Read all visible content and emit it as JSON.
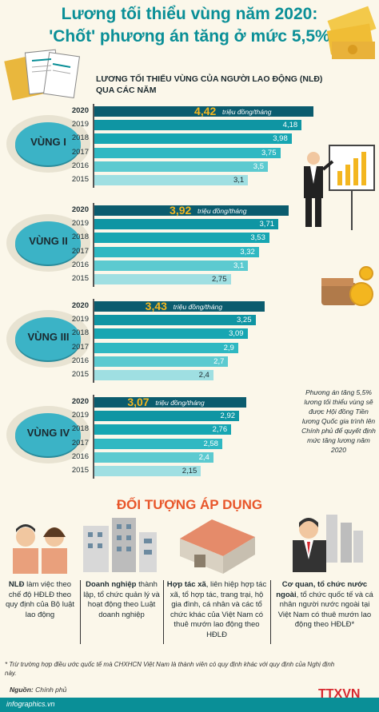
{
  "header": {
    "title_line1": "Lương tối thiểu vùng năm 2020:",
    "title_line2": "'Chốt' phương án tăng ở mức 5,5%"
  },
  "chart_data": {
    "type": "bar",
    "title": "LƯƠNG TỐI THIỂU VÙNG CỦA NGƯỜI LAO ĐỘNG (NLĐ) QUA CÁC NĂM",
    "unit": "triệu đồng/tháng",
    "categories": [
      "2020",
      "2019",
      "2018",
      "2017",
      "2016",
      "2015"
    ],
    "series": [
      {
        "name": "VÙNG I",
        "labels": [
          "4,42",
          "4,18",
          "3,98",
          "3,75",
          "3,5",
          "3,1"
        ],
        "values": [
          4.42,
          4.18,
          3.98,
          3.75,
          3.5,
          3.1
        ]
      },
      {
        "name": "VÙNG II",
        "labels": [
          "3,92",
          "3,71",
          "3,53",
          "3,32",
          "3,1",
          "2,75"
        ],
        "values": [
          3.92,
          3.71,
          3.53,
          3.32,
          3.1,
          2.75
        ]
      },
      {
        "name": "VÙNG III",
        "labels": [
          "3,43",
          "3,25",
          "3,09",
          "2,9",
          "2,7",
          "2,4"
        ],
        "values": [
          3.43,
          3.25,
          3.09,
          2.9,
          2.7,
          2.4
        ]
      },
      {
        "name": "VÙNG IV",
        "labels": [
          "3,07",
          "2,92",
          "2,76",
          "2,58",
          "2,4",
          "2,15"
        ],
        "values": [
          3.07,
          2.92,
          2.76,
          2.58,
          2.4,
          2.15
        ]
      }
    ],
    "colors": {
      "highlight": "#0b5c6e",
      "bars": [
        "#0f95a3",
        "#17a6b2",
        "#2fb8c2",
        "#5ccad0",
        "#9fdfe2"
      ],
      "value_highlight": "#f3b61f"
    }
  },
  "side_note": "Phương án tăng 5,5% lương tối thiểu vùng sẽ được Hội đồng Tiền lương Quốc gia trình lên Chính phủ để quyết định mức tăng lương năm 2020",
  "section": {
    "title": "ĐỐI TƯỢNG ÁP DỤNG",
    "items": [
      {
        "bold": "NLĐ",
        "text": " làm việc theo chế độ HĐLĐ theo quy định của Bộ luật lao động",
        "icon": "workers-icon"
      },
      {
        "bold": "Doanh nghiệp",
        "text": " thành lập, tổ chức quản lý và hoạt động theo Luật doanh nghiệp",
        "icon": "office-buildings-icon"
      },
      {
        "bold": "Hợp tác xã",
        "text": ", liên hiệp hợp tác xã, tổ hợp tác, trang trại, hộ gia đình, cá nhân và các tổ chức khác của Việt Nam có thuê mướn lao động theo HĐLĐ",
        "icon": "warehouse-icon"
      },
      {
        "bold": "Cơ quan, tổ chức nước ngoài",
        "text": ", tổ chức quốc tế và cá nhân người nước ngoài tại Việt Nam có thuê mướn lao động theo HĐLĐ*",
        "icon": "businessman-icon"
      }
    ]
  },
  "footnote": "* Trừ trường hợp điều ước quốc tế mà CHXHCN Việt Nam là thành viên có quy định khác với quy định của Nghị định này.",
  "source": {
    "label": "Nguồn:",
    "value": "Chính phủ"
  },
  "footer": {
    "site": "infographics.vn",
    "logo": "TTXVN"
  }
}
